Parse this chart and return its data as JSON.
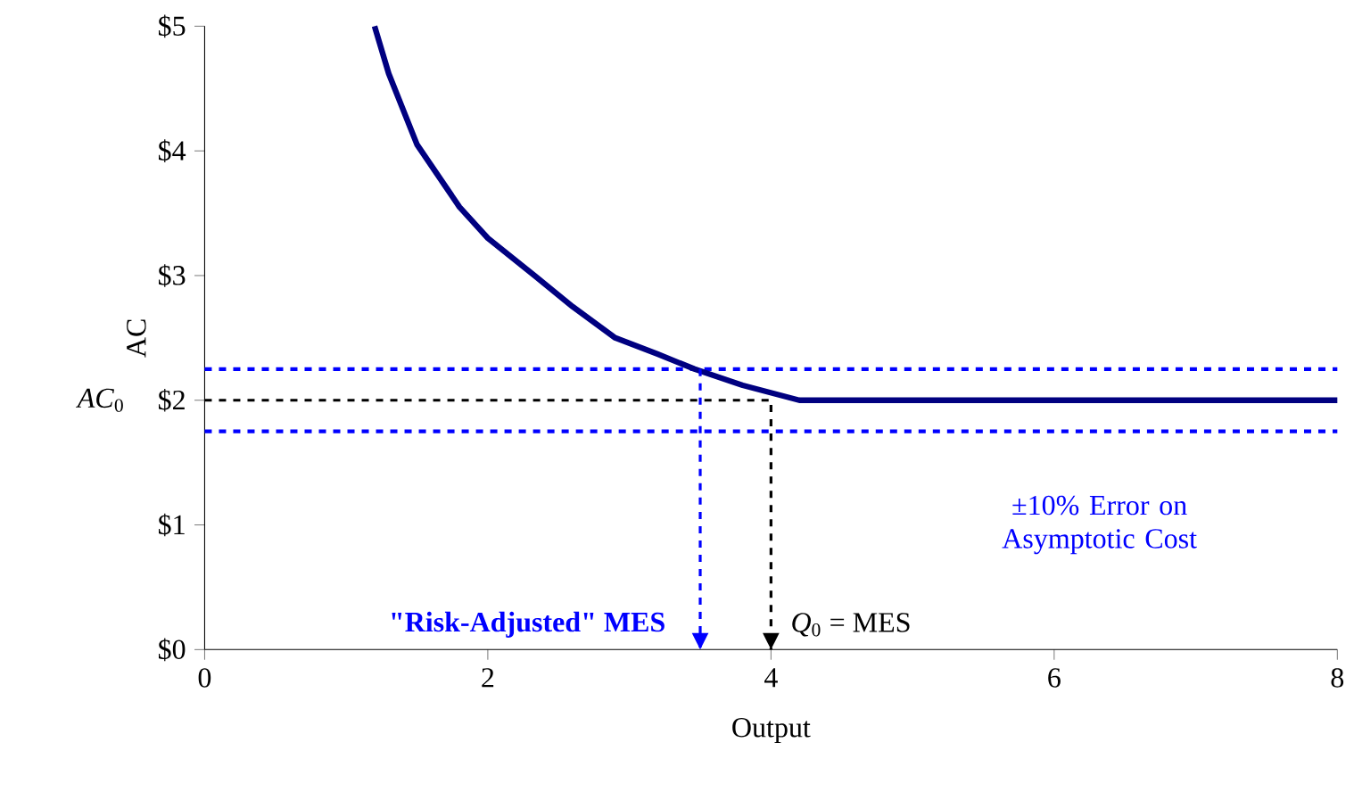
{
  "chart_data": {
    "type": "line",
    "xlabel": "Output",
    "ylabel": "AC",
    "xlim": [
      0,
      8
    ],
    "ylim": [
      0,
      5
    ],
    "xticks": [
      0,
      2,
      4,
      6,
      8
    ],
    "yticks": [
      {
        "value": 0,
        "label": "$0"
      },
      {
        "value": 1,
        "label": "$1"
      },
      {
        "value": 2,
        "label": "$2"
      },
      {
        "value": 3,
        "label": "$3"
      },
      {
        "value": 4,
        "label": "$4"
      },
      {
        "value": 5,
        "label": "$5"
      }
    ],
    "series": [
      {
        "color": "#000080",
        "line_style": "solid",
        "x": [
          1.2,
          1.3,
          1.5,
          1.8,
          2.0,
          2.33,
          2.6,
          2.9,
          3.2,
          3.46,
          3.8,
          4.2,
          8
        ],
        "values": [
          5,
          4.62,
          4.05,
          3.55,
          3.3,
          3.0,
          2.75,
          2.5,
          2.37,
          2.25,
          2.12,
          2.0,
          2.0
        ]
      },
      {
        "color": "#000000",
        "line_style": "dashed",
        "x": [
          0,
          4,
          4
        ],
        "values": [
          2,
          2,
          0
        ]
      },
      {
        "color": "#0000ff",
        "line_style": "dashed",
        "x": [
          3.5,
          3.5
        ],
        "values": [
          2.25,
          0
        ]
      }
    ],
    "ref_lines": [
      {
        "axis": "y",
        "value": 2.25,
        "color": "#0000ff",
        "line_style": "dashed"
      },
      {
        "axis": "y",
        "value": 1.75,
        "color": "#0000ff",
        "line_style": "dashed"
      }
    ],
    "annotations": [
      "±10% Error on Asymptotic Cost",
      {
        "text": "**\"Risk-Adjusted\" MES**",
        "x": 3.45,
        "y": 0.2
      },
      "*Q*$_{0}$ = MES",
      {
        "text": "*AC*$_{0}$",
        "x": 0,
        "y": 2
      }
    ],
    "grid": false,
    "marker": "none"
  }
}
